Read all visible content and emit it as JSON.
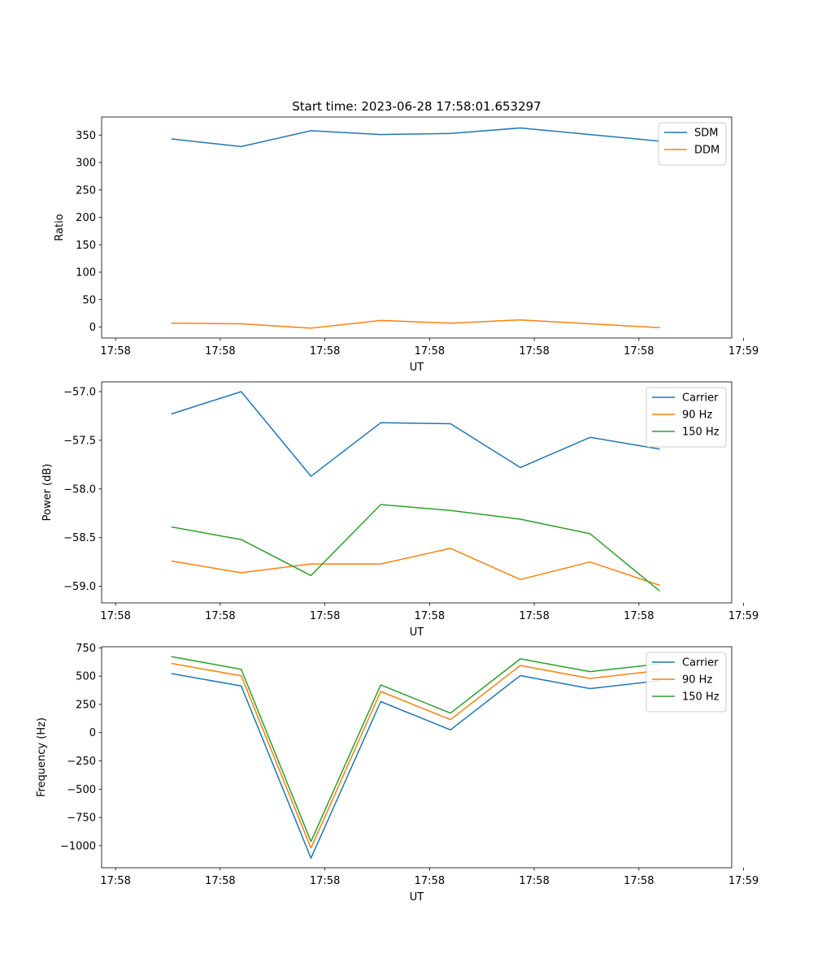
{
  "title": "Start time: 2023-06-28 17:58:01.653297",
  "chart_data": [
    {
      "type": "line",
      "xlabel": "UT",
      "ylabel": "Ratio",
      "xlim": [
        0,
        9.03
      ],
      "ylim": [
        -20,
        383
      ],
      "x_ticks": [
        0.2,
        1.7,
        3.2,
        4.7,
        6.2,
        7.7,
        9.2
      ],
      "x_tick_labels": [
        "17:58",
        "17:58",
        "17:58",
        "17:58",
        "17:58",
        "17:58",
        "17:59"
      ],
      "y_ticks": [
        0,
        50,
        100,
        150,
        200,
        250,
        300,
        350
      ],
      "y_tick_labels": [
        "0",
        "50",
        "100",
        "150",
        "200",
        "250",
        "300",
        "350"
      ],
      "x": [
        1,
        2,
        3,
        4,
        5,
        6,
        7,
        8
      ],
      "series": [
        {
          "name": "SDM",
          "color": "#1f77b4",
          "values": [
            343,
            329,
            358,
            351,
            353,
            363,
            351,
            339
          ]
        },
        {
          "name": "DDM",
          "color": "#ff7f0e",
          "values": [
            7,
            6,
            -2,
            12,
            7,
            13,
            6,
            -1
          ]
        }
      ],
      "legend": "top-right",
      "grid": false
    },
    {
      "type": "line",
      "xlabel": "UT",
      "ylabel": "Power (dB)",
      "xlim": [
        0,
        9.03
      ],
      "ylim": [
        -59.17,
        -56.9
      ],
      "x_ticks": [
        0.2,
        1.7,
        3.2,
        4.7,
        6.2,
        7.7,
        9.2
      ],
      "x_tick_labels": [
        "17:58",
        "17:58",
        "17:58",
        "17:58",
        "17:58",
        "17:58",
        "17:59"
      ],
      "y_ticks": [
        -57.0,
        -57.5,
        -58.0,
        -58.5,
        -59.0
      ],
      "y_tick_labels": [
        "−57.0",
        "−57.5",
        "−58.0",
        "−58.5",
        "−59.0"
      ],
      "x": [
        1,
        2,
        3,
        4,
        5,
        6,
        7,
        8
      ],
      "series": [
        {
          "name": "Carrier",
          "color": "#1f77b4",
          "values": [
            -57.23,
            -57.0,
            -57.87,
            -57.32,
            -57.33,
            -57.78,
            -57.47,
            -57.59
          ]
        },
        {
          "name": "90 Hz",
          "color": "#ff7f0e",
          "values": [
            -58.74,
            -58.86,
            -58.77,
            -58.77,
            -58.61,
            -58.93,
            -58.75,
            -58.99
          ]
        },
        {
          "name": "150 Hz",
          "color": "#2ca02c",
          "values": [
            -58.39,
            -58.52,
            -58.89,
            -58.16,
            -58.22,
            -58.31,
            -58.46,
            -59.05
          ]
        }
      ],
      "legend": "top-right",
      "grid": false
    },
    {
      "type": "line",
      "xlabel": "UT",
      "ylabel": "Frequency (Hz)",
      "xlim": [
        0,
        9.03
      ],
      "ylim": [
        -1195,
        760
      ],
      "x_ticks": [
        0.2,
        1.7,
        3.2,
        4.7,
        6.2,
        7.7,
        9.2
      ],
      "x_tick_labels": [
        "17:58",
        "17:58",
        "17:58",
        "17:58",
        "17:58",
        "17:58",
        "17:59"
      ],
      "y_ticks": [
        750,
        500,
        250,
        0,
        -250,
        -500,
        -750,
        -1000
      ],
      "y_tick_labels": [
        "750",
        "500",
        "250",
        "0",
        "−250",
        "−500",
        "−750",
        "−1000"
      ],
      "x": [
        1,
        2,
        3,
        4,
        5,
        6,
        7,
        8
      ],
      "series": [
        {
          "name": "Carrier",
          "color": "#1f77b4",
          "values": [
            523,
            413,
            -1110,
            275,
            25,
            505,
            390,
            460
          ]
        },
        {
          "name": "90 Hz",
          "color": "#ff7f0e",
          "values": [
            613,
            503,
            -1020,
            365,
            115,
            595,
            480,
            550
          ]
        },
        {
          "name": "150 Hz",
          "color": "#2ca02c",
          "values": [
            673,
            560,
            -963,
            423,
            173,
            653,
            540,
            608
          ]
        }
      ],
      "legend": "top-right",
      "grid": false
    }
  ]
}
